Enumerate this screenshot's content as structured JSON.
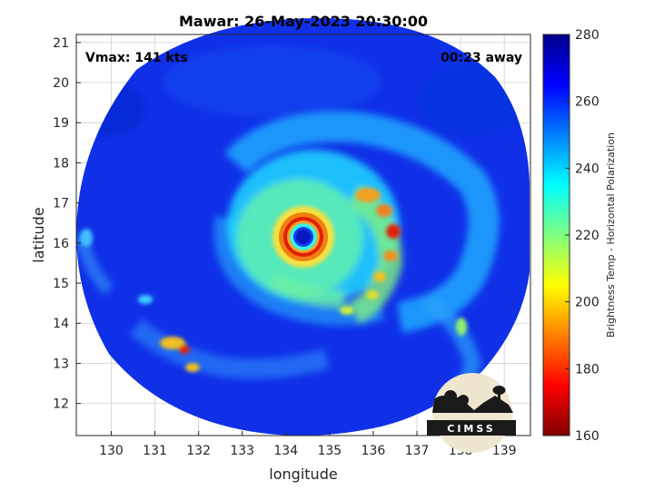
{
  "chart_data": {
    "type": "heatmap",
    "title": "Mawar: 26-May-2023 20:30:00",
    "xlabel": "longitude",
    "ylabel": "latitude",
    "xlim": [
      129.2,
      139.6
    ],
    "ylim": [
      11.2,
      21.2
    ],
    "xticks": [
      130,
      131,
      132,
      133,
      134,
      135,
      136,
      137,
      138,
      139
    ],
    "yticks": [
      12,
      13,
      14,
      15,
      16,
      17,
      18,
      19,
      20,
      21
    ],
    "grid": true,
    "annotations": {
      "vmax": "Vmax: 141 kts",
      "time_away": "00:23 away"
    },
    "colorbar": {
      "label": "Brightness Temp - Horizontal Polarization",
      "range": [
        160,
        280
      ],
      "ticks": [
        160,
        180,
        200,
        220,
        240,
        260,
        280
      ],
      "colormap": "jet"
    },
    "storm_center": {
      "lon": 134.4,
      "lat": 16.2
    },
    "eye_temperature": 263,
    "eyewall_min_temperature": 182,
    "background_temperature": 262,
    "logo_text": "CIMSS"
  },
  "colors": {
    "grid": "#d9d9d9",
    "axis": "#262626"
  }
}
